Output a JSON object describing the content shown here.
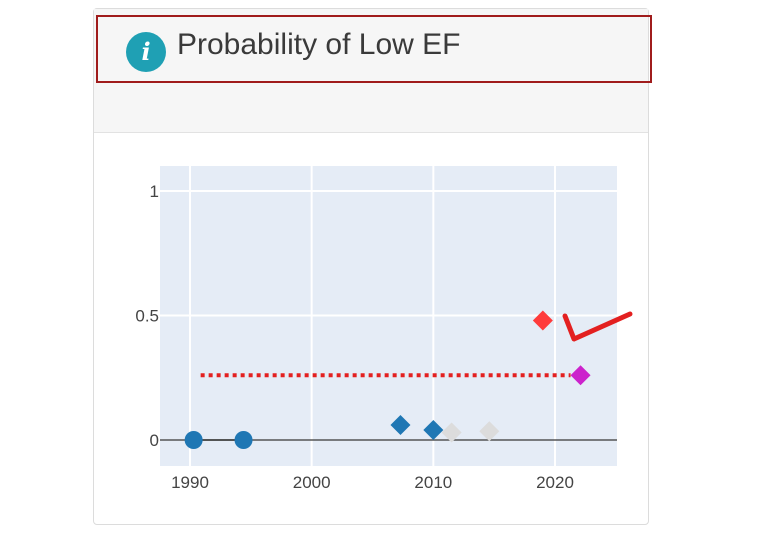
{
  "panel": {
    "title": "Probability of Low EF",
    "info_icon": "info-icon",
    "info_glyph": "i",
    "accent_color": "#1fa0b4",
    "highlight_border_color": "#a01c1c"
  },
  "chart_data": {
    "type": "scatter",
    "title": "",
    "xlabel": "",
    "ylabel": "",
    "xlim": [
      1988,
      2025
    ],
    "ylim": [
      -0.1,
      1.07
    ],
    "x_ticks": [
      "1990",
      "2000",
      "2010",
      "2020"
    ],
    "y_ticks": [
      "0",
      "0.5",
      "1"
    ],
    "grid": true,
    "plot_background": "#e5ecf6",
    "series": [
      {
        "marker": "circle",
        "color": "#1f77b4",
        "points": [
          [
            1990.3,
            0.0
          ],
          [
            1994.4,
            0.0
          ]
        ]
      },
      {
        "marker": "diamond",
        "color": "#1f77b4",
        "points": [
          [
            2007.3,
            0.06
          ],
          [
            2010.0,
            0.04
          ]
        ]
      },
      {
        "marker": "diamond",
        "color": "#dcdcdc",
        "points": [
          [
            2011.5,
            0.03
          ],
          [
            2014.6,
            0.035
          ]
        ]
      },
      {
        "marker": "diamond",
        "color": "#ff3b3b",
        "points": [
          [
            2019.0,
            0.48
          ]
        ]
      },
      {
        "marker": "diamond",
        "color": "#cc22cc",
        "points": [
          [
            2022.1,
            0.26
          ]
        ]
      }
    ],
    "reference_line": {
      "y": 0.26,
      "x_range": [
        1990.3,
        2022.1
      ],
      "style": "dotted",
      "color": "#e32020"
    },
    "annotation": {
      "shape": "check-mark",
      "color": "#e32020"
    }
  }
}
